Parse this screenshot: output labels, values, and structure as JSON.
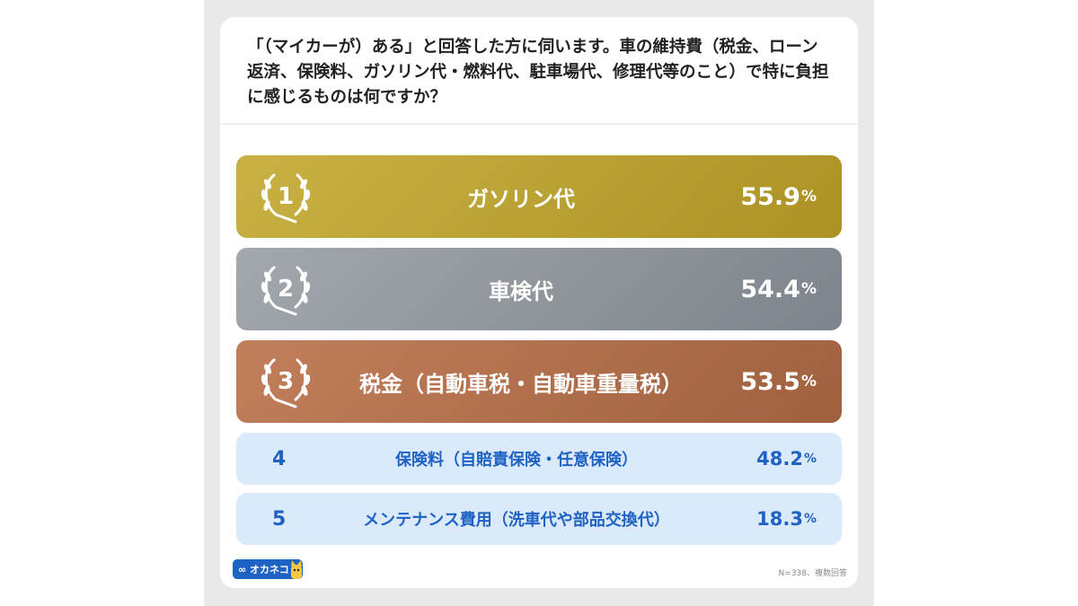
{
  "question": "「（マイカーが）ある」と回答した方に伺います。車の維持費（税金、ローン返済、保険料、ガソリン代・燃料代、駐車場代、修理代等のこと）で特に負担に感じるものは何ですか？",
  "colors": {
    "gold": [
      "#c9b144",
      "#ac9225"
    ],
    "silver": [
      "#a3a8ae",
      "#7e848b"
    ],
    "bronze": [
      "#c27f5c",
      "#a0603d"
    ],
    "plain_bg": "#dbeafb",
    "plain_text": "#1e62c4"
  },
  "chart_data": {
    "type": "table",
    "rows": [
      {
        "rank": "1",
        "label": "ガソリン代",
        "value": "55.9"
      },
      {
        "rank": "2",
        "label": "車検代",
        "value": "54.4"
      },
      {
        "rank": "3",
        "label": "税金（自動車税・自動車重量税）",
        "value": "53.5"
      },
      {
        "rank": "4",
        "label": "保険料（自賠責保険・任意保険）",
        "value": "48.2"
      },
      {
        "rank": "5",
        "label": "メンテナンス費用（洗車代や部品交換代）",
        "value": "18.3"
      }
    ],
    "unit": "%"
  },
  "logo": {
    "text": "∞ オカネコ",
    "icon": "cat-mascot-icon"
  },
  "note": "N=338、複数回答"
}
